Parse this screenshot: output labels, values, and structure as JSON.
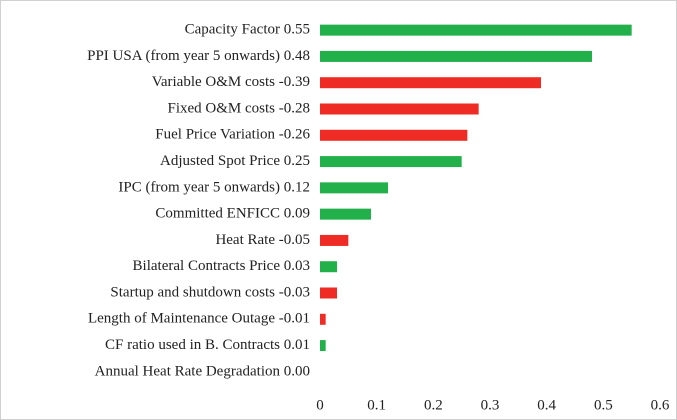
{
  "chart_data": {
    "type": "barh",
    "categories": [
      "Capacity Factor 0.55",
      "PPI USA (from year 5 onwards) 0.48",
      "Variable O&M costs -0.39",
      "Fixed O&M costs -0.28",
      "Fuel Price Variation -0.26",
      "Adjusted Spot Price 0.25",
      "IPC (from year 5 onwards) 0.12",
      "Committed ENFICC 0.09",
      "Heat Rate -0.05",
      "Bilateral Contracts Price 0.03",
      "Startup and shutdown costs -0.03",
      "Length of Maintenance Outage -0.01",
      "CF ratio used in B. Contracts 0.01",
      "Annual Heat Rate Degradation 0.00"
    ],
    "values": [
      0.55,
      0.48,
      0.39,
      0.28,
      0.26,
      0.25,
      0.12,
      0.09,
      0.05,
      0.03,
      0.03,
      0.01,
      0.01,
      0
    ],
    "colors": [
      "#22b04b",
      "#22b04b",
      "#ee2b24",
      "#ee2b24",
      "#ee2b24",
      "#22b04b",
      "#22b04b",
      "#22b04b",
      "#ee2b24",
      "#22b04b",
      "#ee2b24",
      "#ee2b24",
      "#22b04b",
      "#22b04b"
    ],
    "xlim": [
      0,
      0.6
    ],
    "xticks": [
      0,
      0.1,
      0.2,
      0.3,
      0.4,
      0.5,
      0.6
    ],
    "grid": false
  }
}
